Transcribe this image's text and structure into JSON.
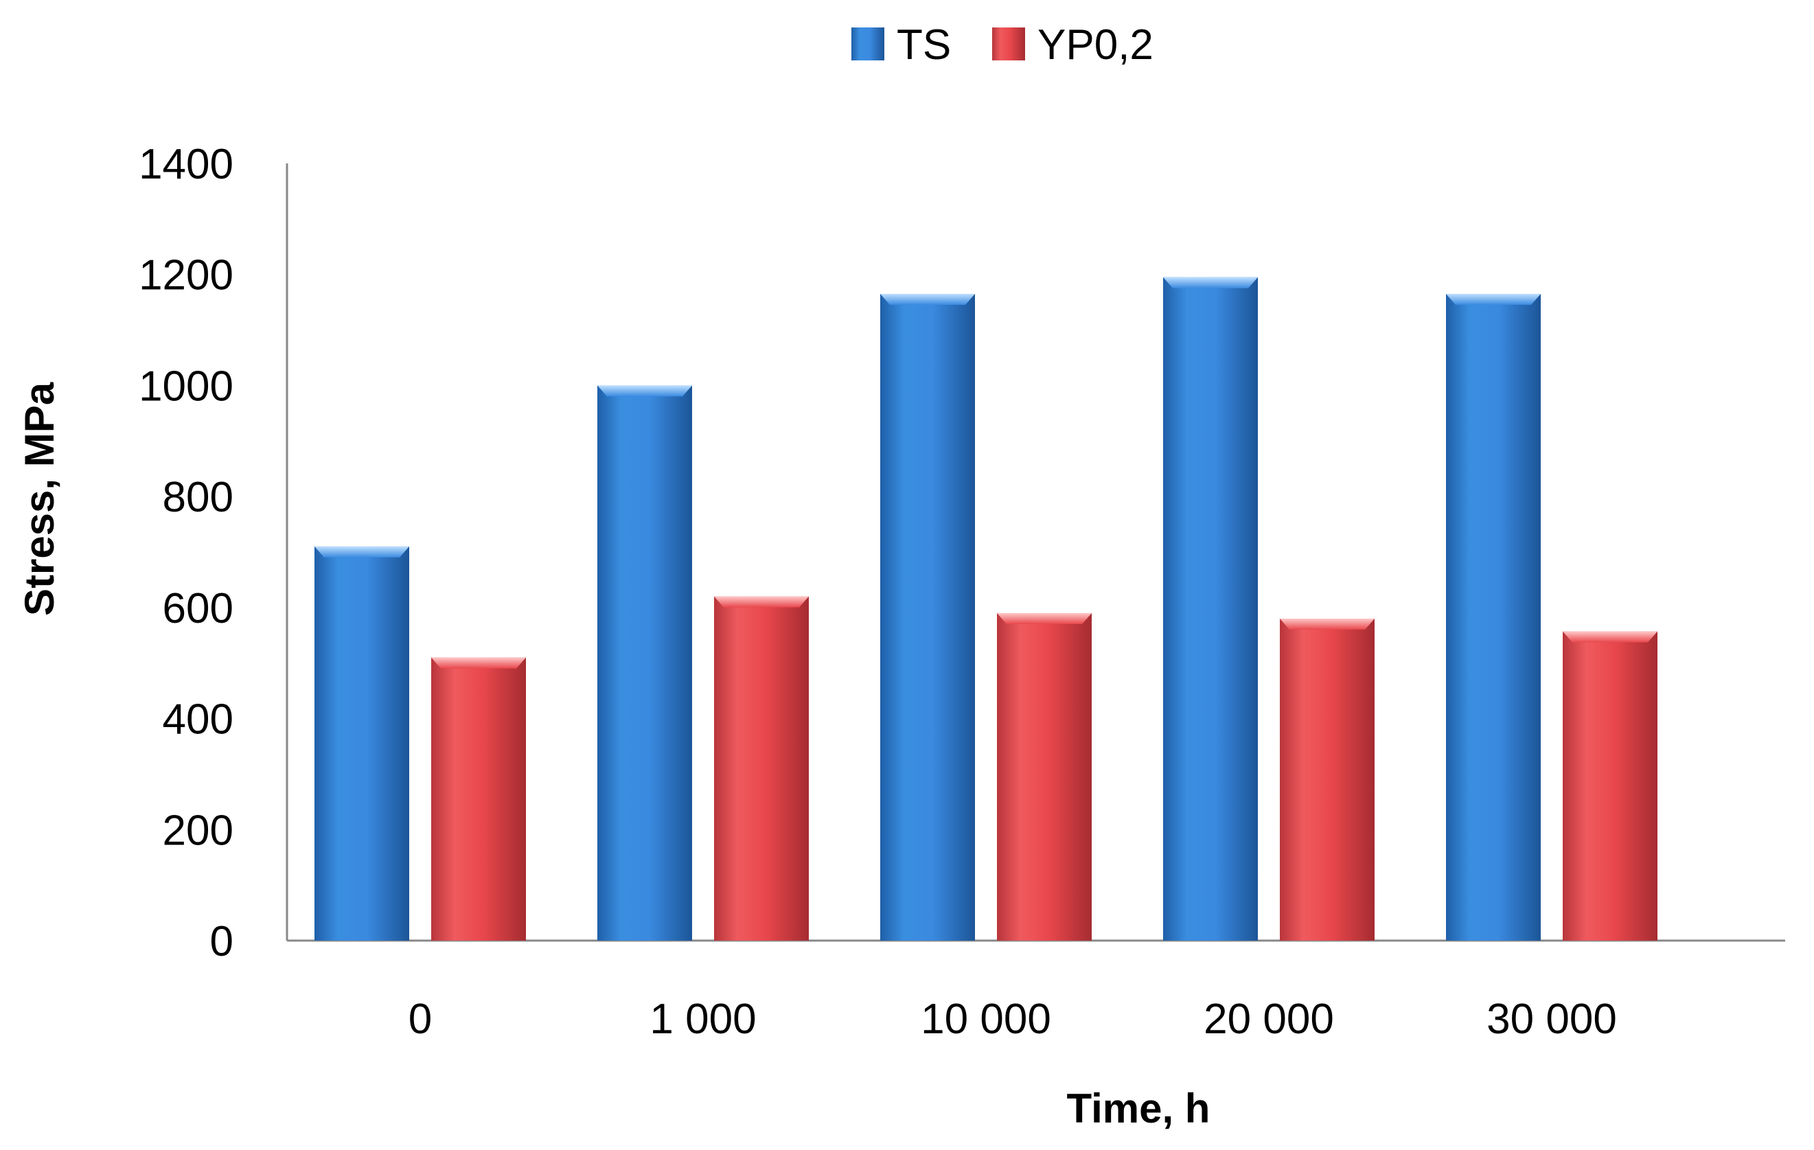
{
  "chart_data": {
    "type": "bar",
    "categories": [
      "0",
      "1 000",
      "10 000",
      "20 000",
      "30 000"
    ],
    "series": [
      {
        "name": "TS",
        "values": [
          710,
          1000,
          1165,
          1195,
          1165
        ],
        "color": "#2f7fd0"
      },
      {
        "name": "YP0,2",
        "values": [
          510,
          620,
          590,
          580,
          557
        ],
        "color": "#e0474c"
      }
    ],
    "xlabel": "Time, h",
    "ylabel": "Stress, MPa",
    "ylim": [
      0,
      1400
    ],
    "yticks": [
      0,
      200,
      400,
      600,
      800,
      1000,
      1200,
      1400
    ],
    "grid": false,
    "legend_position": "top-center"
  }
}
